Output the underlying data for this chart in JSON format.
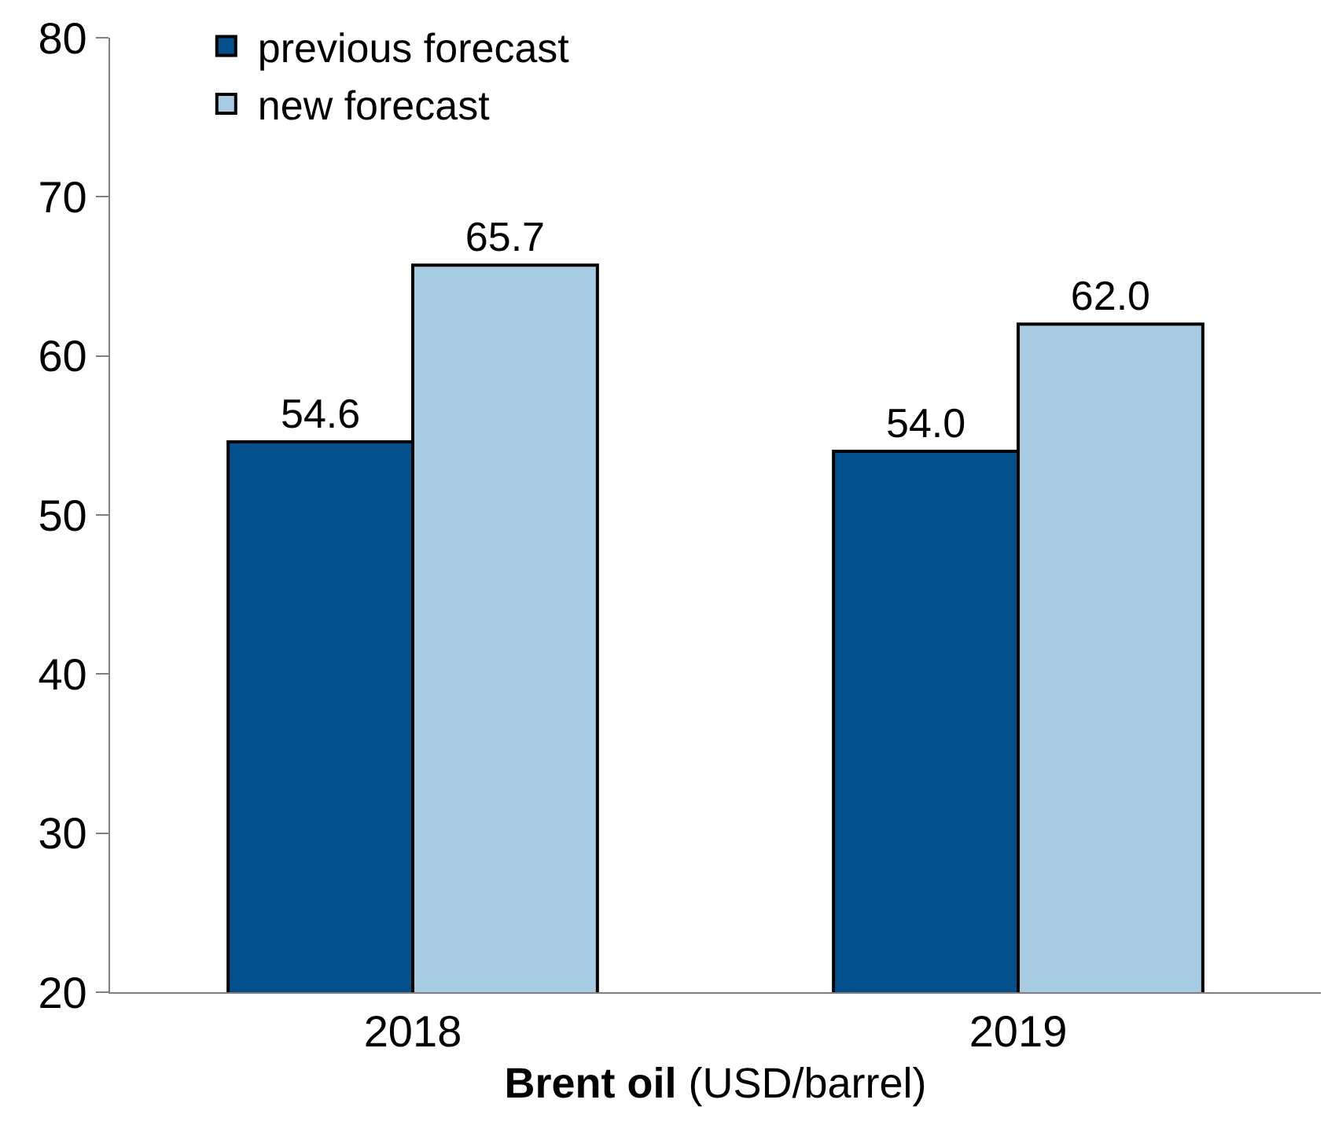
{
  "chart_data": {
    "type": "bar",
    "xlabel": "Brent oil (USD/barrel)",
    "categories": [
      "2018",
      "2019"
    ],
    "series": [
      {
        "name": "previous forecast",
        "color": "#03508c",
        "values": [
          54.6,
          54.0
        ],
        "value_labels": [
          "54.6",
          "54.0"
        ]
      },
      {
        "name": "new forecast",
        "color": "#a6cbe3",
        "values": [
          65.7,
          62.0
        ],
        "value_labels": [
          "65.7",
          "62.0"
        ]
      }
    ],
    "ylim": [
      20,
      80
    ],
    "yticks": [
      20,
      30,
      40,
      50,
      60,
      70,
      80
    ],
    "legend": "top left"
  }
}
